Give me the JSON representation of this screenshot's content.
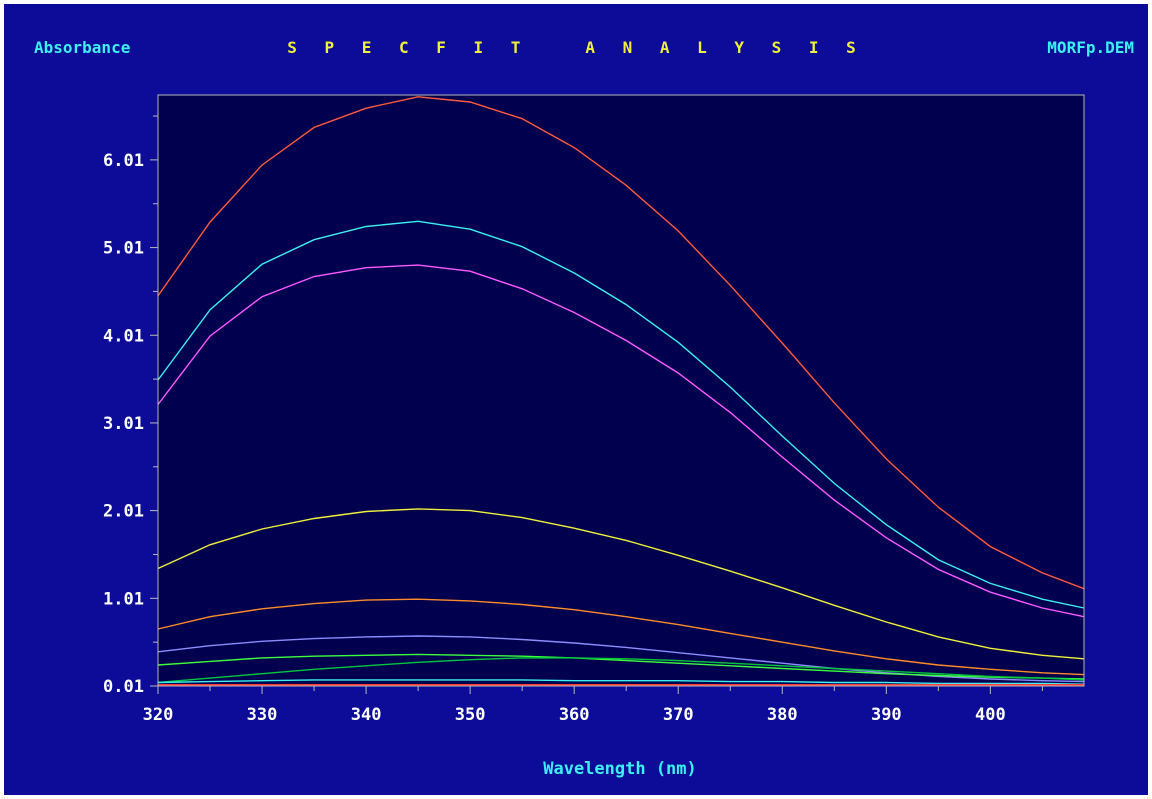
{
  "header": {
    "left_label": "Absorbance",
    "title": "S P E C F I T   A N A L Y S I S",
    "right_label": "MORFp.DEM"
  },
  "colors": {
    "background": "#0c0c98",
    "plot_area": "#00004e",
    "frame": "#b8b8b8",
    "axis_label_text": "#ffffff",
    "header_cyan": "#3cf0f0",
    "header_yellow": "#f0f03c"
  },
  "chart_data": {
    "type": "line",
    "title": "S P E C F I T   A N A L Y S I S",
    "xlabel": "Wavelength (nm)",
    "ylabel": "Absorbance",
    "xlim": [
      320,
      409
    ],
    "ylim": [
      0.01,
      6.75
    ],
    "xticks": [
      320,
      330,
      340,
      350,
      360,
      370,
      380,
      390,
      400
    ],
    "xtick_labels": [
      "320",
      "330",
      "340",
      "350",
      "360",
      "370",
      "380",
      "390",
      "400"
    ],
    "yticks": [
      0.01,
      1.01,
      2.01,
      3.01,
      4.01,
      5.01,
      6.01
    ],
    "ytick_labels": [
      "0.01",
      "1.01",
      "2.01",
      "3.01",
      "4.01",
      "5.01",
      "6.01"
    ],
    "grid": false,
    "x": [
      320,
      325,
      330,
      335,
      340,
      345,
      350,
      355,
      360,
      365,
      370,
      375,
      380,
      385,
      390,
      395,
      400,
      405,
      409
    ],
    "series": [
      {
        "color": "#ff5a3c",
        "values": [
          4.46,
          5.3,
          5.95,
          6.38,
          6.6,
          6.73,
          6.67,
          6.48,
          6.15,
          5.72,
          5.2,
          4.58,
          3.92,
          3.24,
          2.6,
          2.05,
          1.6,
          1.3,
          1.12
        ]
      },
      {
        "color": "#3cf0f0",
        "values": [
          3.5,
          4.3,
          4.82,
          5.1,
          5.25,
          5.31,
          5.22,
          5.02,
          4.72,
          4.36,
          3.93,
          3.42,
          2.86,
          2.32,
          1.85,
          1.45,
          1.18,
          1.0,
          0.9
        ]
      },
      {
        "color": "#ff5aff",
        "values": [
          3.22,
          4.0,
          4.45,
          4.68,
          4.78,
          4.81,
          4.74,
          4.54,
          4.27,
          3.95,
          3.58,
          3.13,
          2.62,
          2.13,
          1.7,
          1.34,
          1.08,
          0.9,
          0.8
        ]
      },
      {
        "color": "#f0f03c",
        "values": [
          1.35,
          1.62,
          1.8,
          1.92,
          2.0,
          2.03,
          2.01,
          1.93,
          1.81,
          1.67,
          1.5,
          1.32,
          1.13,
          0.93,
          0.74,
          0.57,
          0.44,
          0.36,
          0.32
        ]
      },
      {
        "color": "#ff8c28",
        "values": [
          0.66,
          0.8,
          0.89,
          0.95,
          0.99,
          1.0,
          0.98,
          0.94,
          0.88,
          0.8,
          0.71,
          0.61,
          0.51,
          0.41,
          0.32,
          0.25,
          0.2,
          0.16,
          0.14
        ]
      },
      {
        "color": "#8c8cff",
        "values": [
          0.4,
          0.47,
          0.52,
          0.55,
          0.57,
          0.58,
          0.57,
          0.54,
          0.5,
          0.45,
          0.39,
          0.33,
          0.27,
          0.21,
          0.16,
          0.12,
          0.09,
          0.07,
          0.06
        ]
      },
      {
        "color": "#3cff3c",
        "values": [
          0.25,
          0.29,
          0.33,
          0.35,
          0.36,
          0.37,
          0.36,
          0.35,
          0.33,
          0.3,
          0.27,
          0.24,
          0.21,
          0.18,
          0.15,
          0.13,
          0.11,
          0.1,
          0.09
        ]
      },
      {
        "color": "#00c83c",
        "values": [
          0.05,
          0.1,
          0.15,
          0.2,
          0.24,
          0.28,
          0.31,
          0.33,
          0.33,
          0.32,
          0.3,
          0.27,
          0.24,
          0.21,
          0.18,
          0.15,
          0.12,
          0.1,
          0.08
        ]
      },
      {
        "color": "#3cf0f0",
        "values": [
          0.05,
          0.06,
          0.07,
          0.08,
          0.08,
          0.08,
          0.08,
          0.08,
          0.07,
          0.07,
          0.07,
          0.06,
          0.06,
          0.05,
          0.05,
          0.04,
          0.04,
          0.04,
          0.03
        ]
      },
      {
        "color": "#ff3c3c",
        "values": [
          0.02,
          0.02,
          0.02,
          0.02,
          0.02,
          0.02,
          0.02,
          0.02,
          0.02,
          0.02,
          0.02,
          0.02,
          0.02,
          0.02,
          0.02,
          0.02,
          0.02,
          0.02,
          0.02
        ]
      }
    ]
  }
}
